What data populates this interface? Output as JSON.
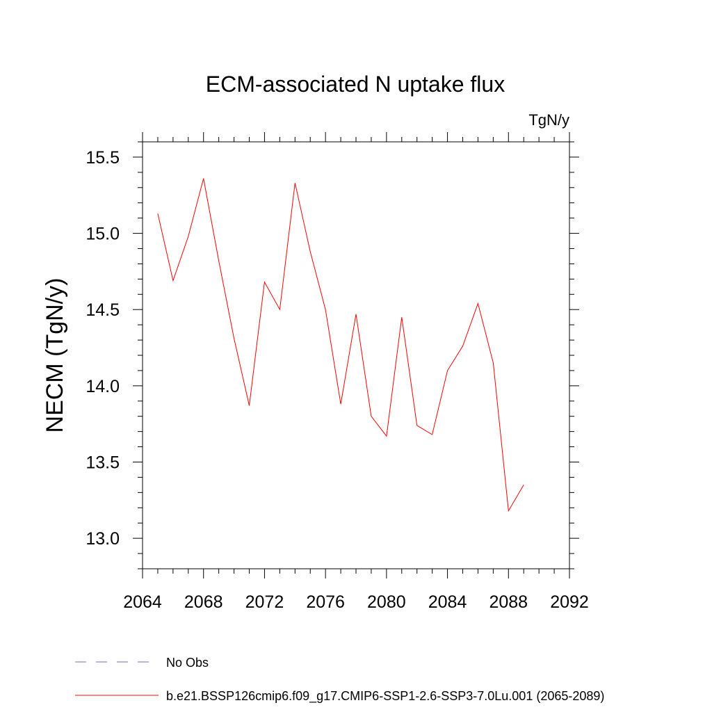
{
  "chart_data": {
    "type": "line",
    "title": "ECM-associated N uptake flux",
    "units_label": "TgN/y",
    "xlabel": "",
    "ylabel": "NECM  (TgN/y)",
    "xlim": [
      2064,
      2092
    ],
    "ylim": [
      12.8,
      15.6
    ],
    "x_ticks": [
      2064,
      2068,
      2072,
      2076,
      2080,
      2084,
      2088,
      2092
    ],
    "x_tick_labels": [
      "2064",
      "2068",
      "2072",
      "2076",
      "2080",
      "2084",
      "2088",
      "2092"
    ],
    "y_ticks": [
      13.0,
      13.5,
      14.0,
      14.5,
      15.0,
      15.5
    ],
    "y_tick_labels": [
      "13.0",
      "13.5",
      "14.0",
      "14.5",
      "15.0",
      "15.5"
    ],
    "grid": false,
    "series": [
      {
        "name": "b.e21.BSSP126cmip6.f09_g17.CMIP6-SSP1-2.6-SSP3-7.0Lu.001 (2065-2089)",
        "color": "#ff0000",
        "x": [
          2065,
          2066,
          2067,
          2068,
          2069,
          2070,
          2071,
          2072,
          2073,
          2074,
          2075,
          2076,
          2077,
          2078,
          2079,
          2080,
          2081,
          2082,
          2083,
          2084,
          2085,
          2086,
          2087,
          2088,
          2089
        ],
        "y": [
          15.13,
          14.69,
          14.98,
          15.36,
          14.82,
          14.31,
          13.87,
          14.68,
          14.5,
          15.33,
          14.88,
          14.5,
          13.88,
          14.47,
          13.8,
          13.67,
          14.45,
          13.74,
          13.68,
          14.1,
          14.26,
          14.54,
          14.15,
          13.18,
          13.35
        ]
      }
    ],
    "legend": {
      "placement": "bottom",
      "entries": [
        {
          "label": "No Obs",
          "color": "#7b6fb0",
          "style": "dashed"
        },
        {
          "label": "b.e21.BSSP126cmip6.f09_g17.CMIP6-SSP1-2.6-SSP3-7.0Lu.001 (2065-2089)",
          "color": "#ff0000",
          "style": "solid"
        }
      ]
    }
  }
}
